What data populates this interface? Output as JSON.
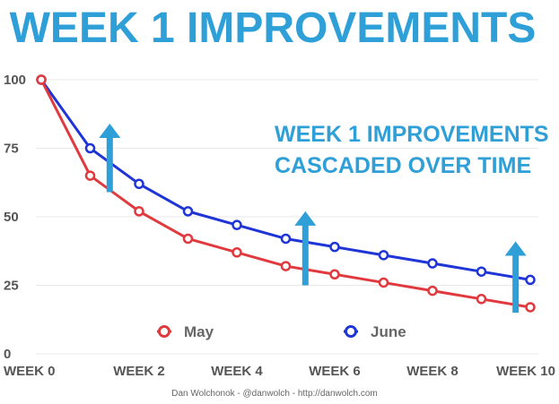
{
  "chart_data": {
    "type": "line",
    "title": "WEEK 1 IMPROVEMENTS",
    "annotation": [
      "WEEK 1 IMPROVEMENTS",
      "CASCADED OVER TIME"
    ],
    "x": [
      0,
      1,
      2,
      3,
      4,
      5,
      6,
      7,
      8,
      9,
      10
    ],
    "x_tick_values": [
      0,
      2,
      4,
      6,
      8,
      10
    ],
    "x_tick_labels": [
      "WEEK 0",
      "WEEK 2",
      "WEEK 4",
      "WEEK 6",
      "WEEK 8",
      "WEEK 10"
    ],
    "y_tick_values": [
      0,
      25,
      50,
      75,
      100
    ],
    "y_tick_labels": [
      "0",
      "25",
      "50",
      "75",
      "100"
    ],
    "xlim": [
      0,
      10
    ],
    "ylim": [
      0,
      100
    ],
    "grid": "horizontal",
    "legend_position": "bottom",
    "series": [
      {
        "name": "May",
        "color": "#e03a3e",
        "values": [
          100,
          65,
          52,
          42,
          37,
          32,
          29,
          26,
          23,
          20,
          17
        ]
      },
      {
        "name": "June",
        "color": "#1f35d6",
        "values": [
          100,
          75,
          62,
          52,
          47,
          42,
          39,
          36,
          33,
          30,
          27
        ]
      }
    ],
    "arrows": [
      {
        "x": 1.4,
        "from": 59,
        "to": 84,
        "color": "#2f9fd8"
      },
      {
        "x": 5.4,
        "from": 25,
        "to": 52,
        "color": "#2f9fd8"
      },
      {
        "x": 9.7,
        "from": 15,
        "to": 41,
        "color": "#2f9fd8"
      }
    ],
    "credit": "Dan Wolchonok - @danwolch - http://danwolch.com"
  }
}
